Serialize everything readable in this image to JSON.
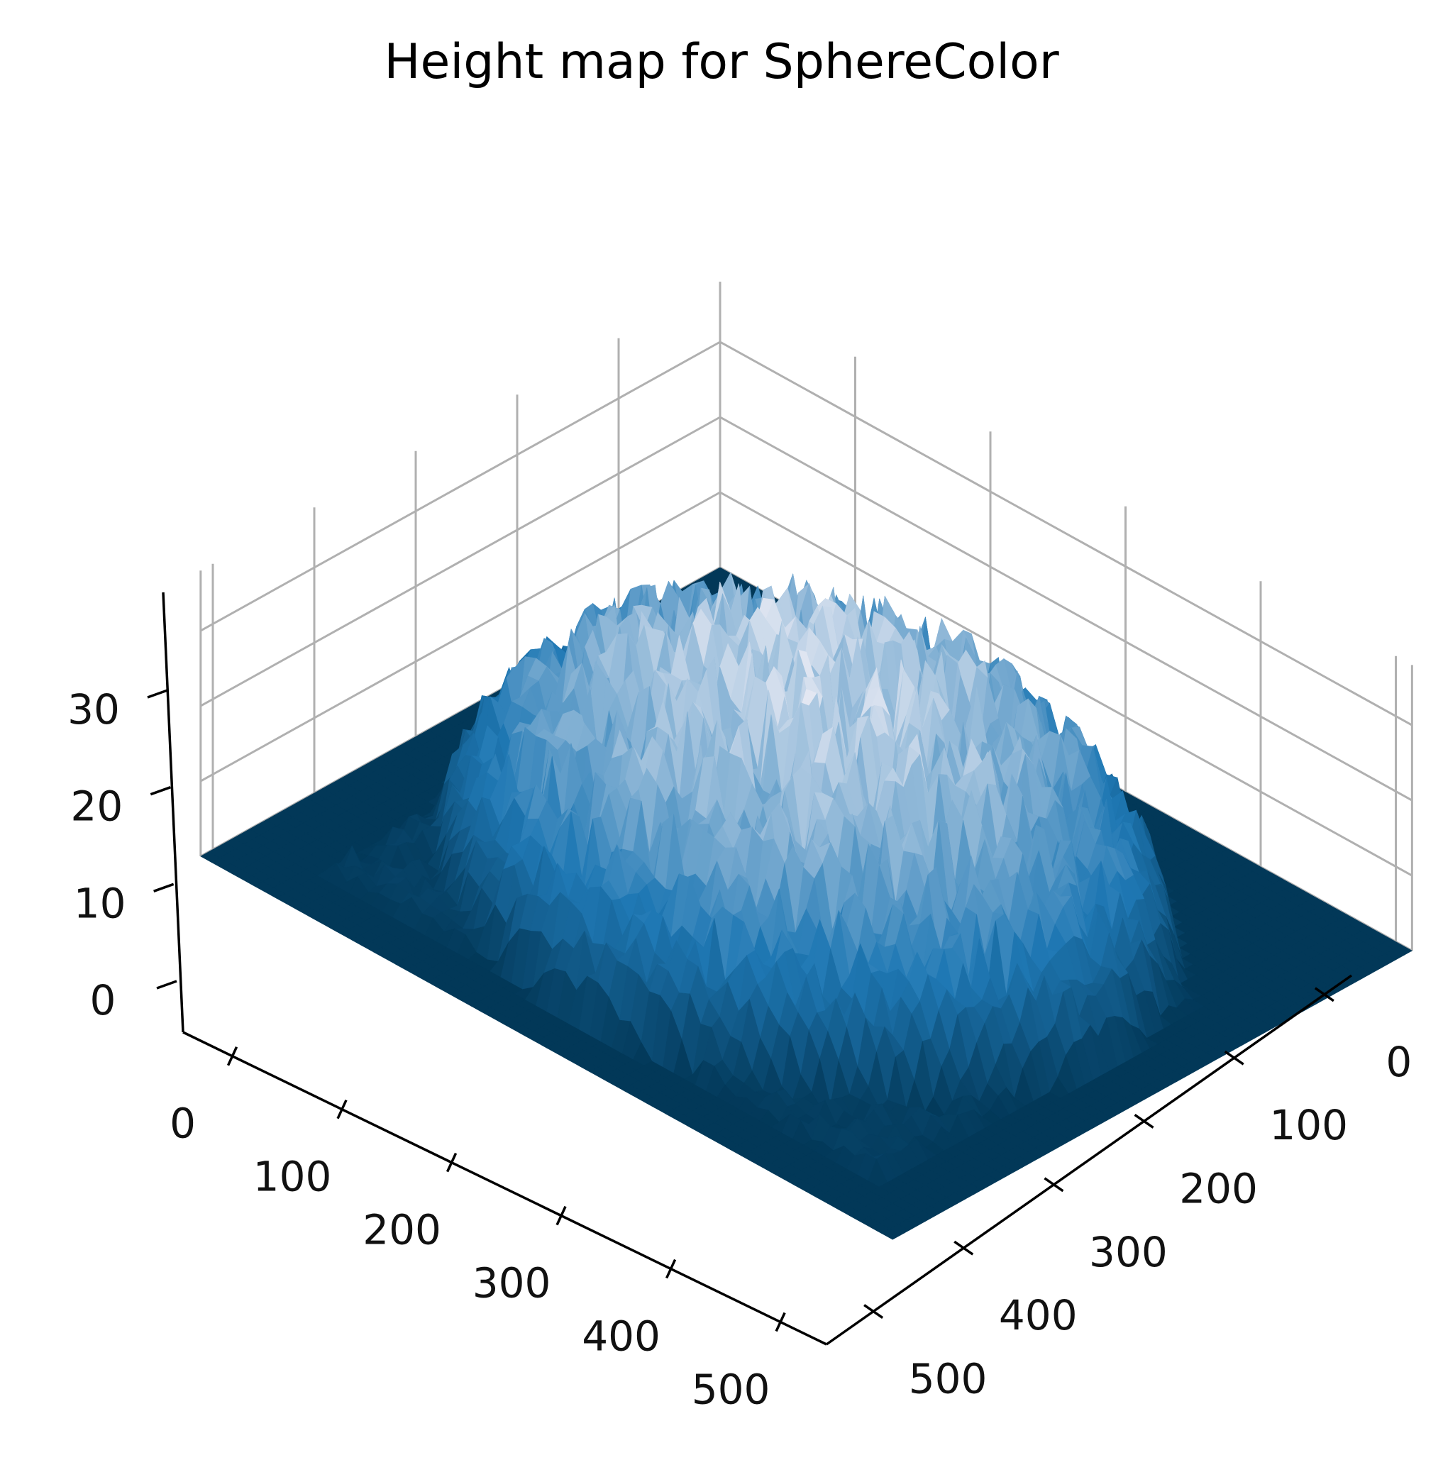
{
  "chart_data": {
    "type": "surface3d",
    "title": "Height map for SphereColor",
    "xlabel": "",
    "ylabel": "",
    "zlabel": "",
    "x_ticks": [
      0,
      100,
      200,
      300,
      400,
      500
    ],
    "y_ticks": [
      0,
      100,
      200,
      300,
      400,
      500
    ],
    "z_ticks": [
      0,
      10,
      20,
      30
    ],
    "xlim": [
      0,
      512
    ],
    "ylim": [
      0,
      512
    ],
    "zlim": [
      0,
      38
    ],
    "grid": true,
    "colormap": "PuBu_r",
    "colors": {
      "low": "#023858",
      "mid": "#1f78b4",
      "high": "#fff7fb"
    },
    "surface": {
      "description_values": {
        "baseline_height": 0,
        "peak_height": 35,
        "peak_center_x": 256,
        "peak_center_y": 256,
        "plateau_offset": 1.5
      }
    }
  }
}
